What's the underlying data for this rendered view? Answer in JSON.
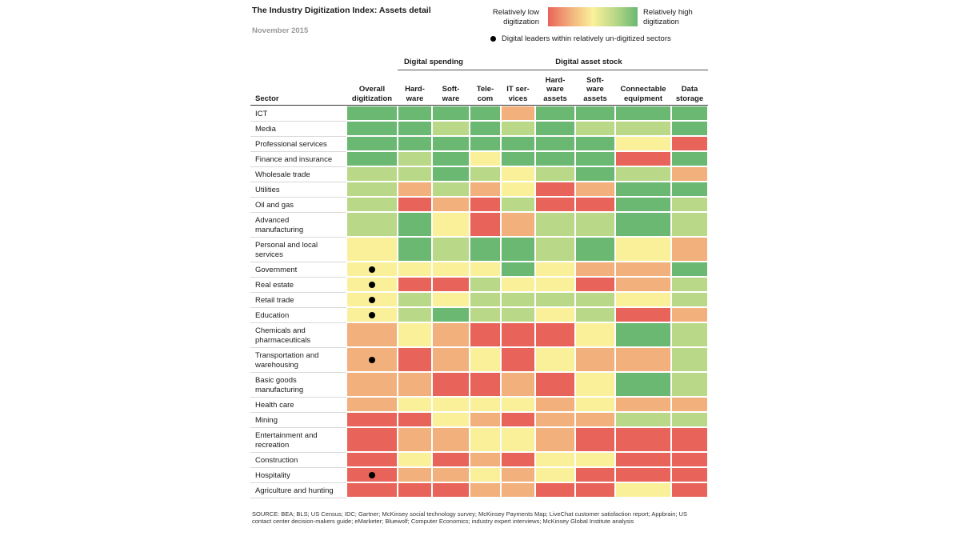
{
  "title": "The Industry Digitization Index: Assets detail",
  "subtitle": "November 2015",
  "legend": {
    "low_label": "Relatively low digitization",
    "high_label": "Relatively high digitization",
    "dot_label": "Digital leaders within relatively un-digitized sectors"
  },
  "groups": {
    "spending": "Digital spending",
    "asset_stock": "Digital asset stock"
  },
  "colors": {
    "1": "#e8645a",
    "2": "#f2b07c",
    "3": "#fbf09a",
    "4": "#b9d888",
    "5": "#6bb873"
  },
  "chart_data": {
    "type": "heatmap",
    "title": "The Industry Digitization Index: Assets detail",
    "scale": "1 = relatively low digitization, 5 = relatively high digitization",
    "row_header": "Sector",
    "columns": [
      "Overall\ndigitization",
      "Hard-\nware",
      "Soft-\nware",
      "Tele-\ncom",
      "IT ser-\nvices",
      "Hard-\nware\nassets",
      "Soft-\nware\nassets",
      "Connectable\nequipment",
      "Data\nstorage"
    ],
    "rows": [
      {
        "sector": "ICT",
        "values": [
          5,
          5,
          5,
          5,
          2,
          5,
          5,
          5,
          5
        ],
        "leader": false
      },
      {
        "sector": "Media",
        "values": [
          5,
          5,
          4,
          5,
          4,
          5,
          4,
          4,
          5
        ],
        "leader": false
      },
      {
        "sector": "Professional services",
        "values": [
          5,
          5,
          5,
          5,
          5,
          5,
          5,
          3,
          1
        ],
        "leader": false
      },
      {
        "sector": "Finance and insurance",
        "values": [
          5,
          4,
          5,
          3,
          5,
          5,
          5,
          1,
          5
        ],
        "leader": false
      },
      {
        "sector": "Wholesale trade",
        "values": [
          4,
          4,
          5,
          4,
          3,
          4,
          5,
          4,
          2
        ],
        "leader": false
      },
      {
        "sector": "Utilities",
        "values": [
          4,
          2,
          4,
          2,
          3,
          1,
          2,
          5,
          5
        ],
        "leader": false
      },
      {
        "sector": "Oil and gas",
        "values": [
          4,
          1,
          2,
          1,
          4,
          1,
          1,
          5,
          4
        ],
        "leader": false
      },
      {
        "sector": "Advanced\nmanufacturing",
        "values": [
          4,
          5,
          3,
          1,
          2,
          4,
          4,
          5,
          4
        ],
        "leader": false
      },
      {
        "sector": "Personal and local\nservices",
        "values": [
          3,
          5,
          4,
          5,
          5,
          4,
          5,
          3,
          2
        ],
        "leader": false
      },
      {
        "sector": "Government",
        "values": [
          3,
          3,
          3,
          3,
          5,
          3,
          2,
          2,
          5
        ],
        "leader": true
      },
      {
        "sector": "Real estate",
        "values": [
          3,
          1,
          1,
          4,
          3,
          3,
          1,
          2,
          4
        ],
        "leader": true
      },
      {
        "sector": "Retail trade",
        "values": [
          3,
          4,
          3,
          4,
          4,
          4,
          4,
          3,
          4
        ],
        "leader": true
      },
      {
        "sector": "Education",
        "values": [
          3,
          4,
          5,
          4,
          4,
          3,
          4,
          1,
          2
        ],
        "leader": true
      },
      {
        "sector": "Chemicals and\npharmaceuticals",
        "values": [
          2,
          3,
          2,
          1,
          1,
          1,
          3,
          5,
          4
        ],
        "leader": false
      },
      {
        "sector": "Transportation and\nwarehousing",
        "values": [
          2,
          1,
          2,
          3,
          1,
          3,
          2,
          2,
          4
        ],
        "leader": true
      },
      {
        "sector": "Basic goods\nmanufacturing",
        "values": [
          2,
          2,
          1,
          1,
          2,
          1,
          3,
          5,
          4
        ],
        "leader": false
      },
      {
        "sector": "Health care",
        "values": [
          2,
          3,
          3,
          3,
          3,
          2,
          3,
          2,
          2
        ],
        "leader": false
      },
      {
        "sector": "Mining",
        "values": [
          1,
          1,
          3,
          2,
          1,
          2,
          2,
          4,
          4
        ],
        "leader": false
      },
      {
        "sector": "Entertainment and\nrecreation",
        "values": [
          1,
          2,
          2,
          3,
          3,
          2,
          1,
          1,
          1
        ],
        "leader": false
      },
      {
        "sector": "Construction",
        "values": [
          1,
          3,
          1,
          2,
          1,
          3,
          3,
          1,
          1
        ],
        "leader": false
      },
      {
        "sector": "Hospitality",
        "values": [
          1,
          2,
          2,
          3,
          2,
          3,
          1,
          1,
          1
        ],
        "leader": true
      },
      {
        "sector": "Agriculture and hunting",
        "values": [
          1,
          1,
          1,
          2,
          2,
          1,
          1,
          3,
          1
        ],
        "leader": false
      }
    ]
  },
  "source": "SOURCE:  BEA; BLS; US Census; IDC; Gartner; McKinsey social technology survey; McKinsey Payments Map; LiveChat customer satisfaction report; Appbrain; US contact center decision-makers guide; eMarketer; Bluewolf; Computer Economics; industry expert interviews; McKinsey Global Institute analysis"
}
